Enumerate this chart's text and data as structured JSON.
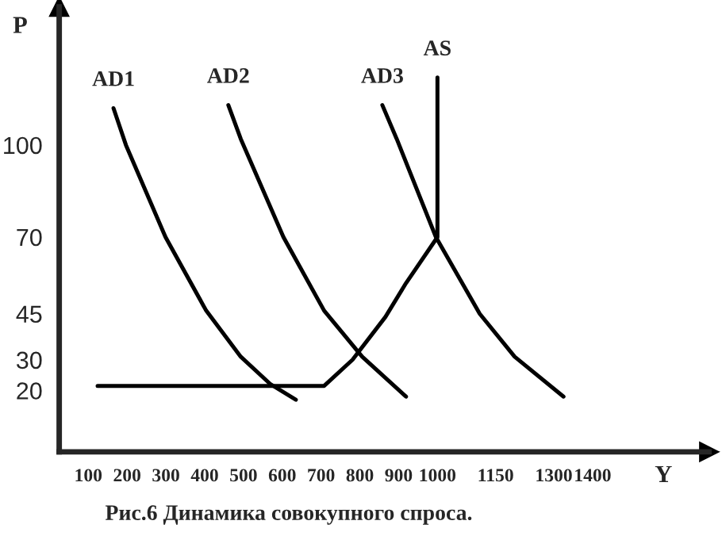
{
  "chart_data": {
    "type": "line",
    "title": "Рис.6 Динамика совокупного спроса.",
    "xlabel": "Y",
    "ylabel": "P",
    "xlim": [
      25,
      1700
    ],
    "ylim": [
      0,
      145
    ],
    "xticks": [
      100,
      200,
      300,
      400,
      500,
      600,
      700,
      800,
      900,
      1000,
      1150,
      1300,
      1400
    ],
    "yticks": [
      20,
      30,
      45,
      70,
      100
    ],
    "grid": false,
    "legend": false,
    "marker": "none",
    "line_style": "solid",
    "series": [
      {
        "name": "AD1",
        "color": "#000000",
        "x": [
          165,
          197,
          299,
          404,
          493,
          570,
          635
        ],
        "values": [
          112,
          100,
          70,
          46,
          31,
          22,
          17
        ]
      },
      {
        "name": "AD2",
        "color": "#000000",
        "x": [
          461,
          493,
          603,
          708,
          806,
          919
        ],
        "values": [
          113,
          102,
          70,
          46,
          31,
          18
        ]
      },
      {
        "name": "AD3",
        "color": "#000000",
        "x": [
          858,
          895,
          996,
          1109,
          1199,
          1325
        ],
        "values": [
          113,
          102,
          70,
          45,
          31,
          18
        ]
      },
      {
        "name": "AS",
        "color": "#000000",
        "x": [
          124,
          708,
          781,
          866,
          919,
          1000,
          1000
        ],
        "values": [
          21.5,
          21.5,
          30,
          44,
          55,
          70,
          122
        ]
      }
    ]
  }
}
